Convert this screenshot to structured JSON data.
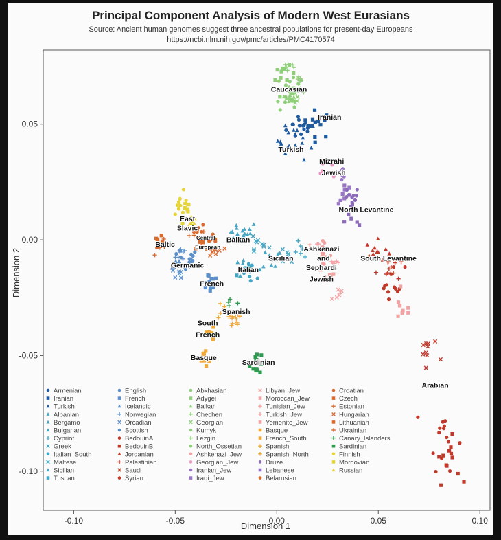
{
  "chart_data": {
    "type": "scatter",
    "title": "Principal Component Analysis of Modern West Eurasians",
    "subtitle": "Source: Ancient human genomes suggest three ancestral populations for present-day Europeans",
    "url": "https://ncbi.nlm.nih.gov/pmc/articles/PMC4170574",
    "xlabel": "Dimension 1",
    "ylabel": "Dimension 2",
    "xlim": [
      -0.115,
      0.105
    ],
    "ylim": [
      -0.117,
      0.082
    ],
    "xticks": [
      "-0.10",
      "-0.05",
      "0.00",
      "0.05",
      "0.10"
    ],
    "xtick_values": [
      -0.1,
      -0.05,
      0.0,
      0.05,
      0.1
    ],
    "yticks": [
      "0.05",
      "0.00",
      "-0.05",
      "-0.10"
    ],
    "ytick_values": [
      0.05,
      0.0,
      -0.05,
      -0.1
    ],
    "grid": false,
    "legend_placement": "bottom-inside",
    "cluster_labels": [
      {
        "text": "Caucasian",
        "x": 0.006,
        "y": 0.064
      },
      {
        "text": "Iranian",
        "x": 0.026,
        "y": 0.052
      },
      {
        "text": "Turkish",
        "x": 0.007,
        "y": 0.038
      },
      {
        "text": "Mizrahi",
        "x": 0.027,
        "y": 0.033
      },
      {
        "text": "Jewish",
        "x": 0.028,
        "y": 0.028
      },
      {
        "text": "North Levantine",
        "x": 0.044,
        "y": 0.012
      },
      {
        "text": "East",
        "x": -0.044,
        "y": 0.008
      },
      {
        "text": "Slavic",
        "x": -0.044,
        "y": 0.004
      },
      {
        "text": "Central",
        "x": -0.035,
        "y": 0.0
      },
      {
        "text": "European",
        "x": -0.034,
        "y": -0.004
      },
      {
        "text": "Baltic",
        "x": -0.055,
        "y": -0.003
      },
      {
        "text": "Balkan",
        "x": -0.019,
        "y": -0.001
      },
      {
        "text": "Germanic",
        "x": -0.044,
        "y": -0.012
      },
      {
        "text": "Italian",
        "x": -0.014,
        "y": -0.014
      },
      {
        "text": "Sicilian",
        "x": 0.002,
        "y": -0.009
      },
      {
        "text": "Ashkenazi",
        "x": 0.022,
        "y": -0.005
      },
      {
        "text": "and",
        "x": 0.023,
        "y": -0.009
      },
      {
        "text": "Sephardi",
        "x": 0.022,
        "y": -0.013
      },
      {
        "text": "Jewish",
        "x": 0.022,
        "y": -0.018
      },
      {
        "text": "South Levantine",
        "x": 0.055,
        "y": -0.009
      },
      {
        "text": "French",
        "x": -0.032,
        "y": -0.02
      },
      {
        "text": "Spanish",
        "x": -0.02,
        "y": -0.032
      },
      {
        "text": "South",
        "x": -0.034,
        "y": -0.037
      },
      {
        "text": "French",
        "x": -0.034,
        "y": -0.042
      },
      {
        "text": "Basque",
        "x": -0.036,
        "y": -0.052
      },
      {
        "text": "Sardinian",
        "x": -0.009,
        "y": -0.054
      },
      {
        "text": "Arabian",
        "x": 0.078,
        "y": -0.064
      }
    ],
    "series": [
      {
        "name": "Armenian",
        "color": "#1f5a9e",
        "marker": "circle",
        "cx": 0.012,
        "cy": 0.049,
        "sx": 0.006,
        "sy": 0.005,
        "n": 14
      },
      {
        "name": "Iranian",
        "color": "#1f5a9e",
        "marker": "square",
        "cx": 0.02,
        "cy": 0.05,
        "sx": 0.006,
        "sy": 0.005,
        "n": 14
      },
      {
        "name": "Turkish",
        "color": "#1f5a9e",
        "marker": "triangle",
        "cx": 0.01,
        "cy": 0.043,
        "sx": 0.008,
        "sy": 0.007,
        "n": 22
      },
      {
        "name": "Albanian",
        "color": "#46a6c4",
        "marker": "triangle",
        "cx": -0.015,
        "cy": 0.004,
        "sx": 0.004,
        "sy": 0.003,
        "n": 8
      },
      {
        "name": "Bergamo",
        "color": "#46a6c4",
        "marker": "triangle",
        "cx": -0.018,
        "cy": -0.012,
        "sx": 0.003,
        "sy": 0.004,
        "n": 6
      },
      {
        "name": "Bulgarian",
        "color": "#46a6c4",
        "marker": "triangle",
        "cx": -0.02,
        "cy": 0.002,
        "sx": 0.004,
        "sy": 0.003,
        "n": 8
      },
      {
        "name": "Cypriot",
        "color": "#46a6c4",
        "marker": "plus",
        "cx": 0.012,
        "cy": -0.005,
        "sx": 0.004,
        "sy": 0.003,
        "n": 6
      },
      {
        "name": "Greek",
        "color": "#46a6c4",
        "marker": "cross",
        "cx": -0.01,
        "cy": -0.002,
        "sx": 0.005,
        "sy": 0.004,
        "n": 10
      },
      {
        "name": "Italian_South",
        "color": "#46a6c4",
        "marker": "circle",
        "cx": -0.012,
        "cy": -0.015,
        "sx": 0.004,
        "sy": 0.004,
        "n": 10
      },
      {
        "name": "Maltese",
        "color": "#46a6c4",
        "marker": "cross",
        "cx": 0.005,
        "cy": -0.008,
        "sx": 0.003,
        "sy": 0.003,
        "n": 6
      },
      {
        "name": "Sicilian",
        "color": "#46a6c4",
        "marker": "triangle",
        "cx": -0.002,
        "cy": -0.008,
        "sx": 0.004,
        "sy": 0.004,
        "n": 10
      },
      {
        "name": "Tuscan",
        "color": "#46a6c4",
        "marker": "square",
        "cx": -0.016,
        "cy": -0.012,
        "sx": 0.004,
        "sy": 0.004,
        "n": 8
      },
      {
        "name": "English",
        "color": "#5b8fc9",
        "marker": "circle",
        "cx": -0.044,
        "cy": -0.008,
        "sx": 0.004,
        "sy": 0.003,
        "n": 10
      },
      {
        "name": "French",
        "color": "#5b8fc9",
        "marker": "square",
        "cx": -0.033,
        "cy": -0.018,
        "sx": 0.004,
        "sy": 0.004,
        "n": 12
      },
      {
        "name": "Icelandic",
        "color": "#5b8fc9",
        "marker": "triangle",
        "cx": -0.05,
        "cy": -0.01,
        "sx": 0.003,
        "sy": 0.003,
        "n": 8
      },
      {
        "name": "Norwegian",
        "color": "#5b8fc9",
        "marker": "plus",
        "cx": -0.046,
        "cy": -0.006,
        "sx": 0.003,
        "sy": 0.003,
        "n": 8
      },
      {
        "name": "Orcadian",
        "color": "#5b8fc9",
        "marker": "cross",
        "cx": -0.048,
        "cy": -0.014,
        "sx": 0.003,
        "sy": 0.003,
        "n": 6
      },
      {
        "name": "Scottish",
        "color": "#5b8fc9",
        "marker": "circle",
        "cx": -0.045,
        "cy": -0.011,
        "sx": 0.003,
        "sy": 0.003,
        "n": 6
      },
      {
        "name": "BedouinA",
        "color": "#c0392b",
        "marker": "circle",
        "cx": 0.082,
        "cy": -0.085,
        "sx": 0.006,
        "sy": 0.012,
        "n": 14
      },
      {
        "name": "BedouinB",
        "color": "#c0392b",
        "marker": "square",
        "cx": 0.084,
        "cy": -0.095,
        "sx": 0.005,
        "sy": 0.008,
        "n": 12
      },
      {
        "name": "Jordanian",
        "color": "#c0392b",
        "marker": "triangle",
        "cx": 0.05,
        "cy": -0.005,
        "sx": 0.005,
        "sy": 0.004,
        "n": 12
      },
      {
        "name": "Palestinian",
        "color": "#c0392b",
        "marker": "plus",
        "cx": 0.055,
        "cy": -0.012,
        "sx": 0.005,
        "sy": 0.005,
        "n": 12
      },
      {
        "name": "Saudi",
        "color": "#c0392b",
        "marker": "cross",
        "cx": 0.074,
        "cy": -0.05,
        "sx": 0.004,
        "sy": 0.01,
        "n": 10
      },
      {
        "name": "Syrian",
        "color": "#c0392b",
        "marker": "circle",
        "cx": 0.057,
        "cy": -0.018,
        "sx": 0.005,
        "sy": 0.006,
        "n": 12
      },
      {
        "name": "Abkhasian",
        "color": "#8fcf7a",
        "marker": "circle",
        "cx": 0.008,
        "cy": 0.068,
        "sx": 0.004,
        "sy": 0.004,
        "n": 10
      },
      {
        "name": "Adygei",
        "color": "#8fcf7a",
        "marker": "square",
        "cx": 0.004,
        "cy": 0.07,
        "sx": 0.004,
        "sy": 0.004,
        "n": 10
      },
      {
        "name": "Balkar",
        "color": "#8fcf7a",
        "marker": "triangle",
        "cx": 0.006,
        "cy": 0.062,
        "sx": 0.004,
        "sy": 0.003,
        "n": 8
      },
      {
        "name": "Chechen",
        "color": "#8fcf7a",
        "marker": "plus",
        "cx": 0.006,
        "cy": 0.075,
        "sx": 0.003,
        "sy": 0.003,
        "n": 6
      },
      {
        "name": "Georgian",
        "color": "#8fcf7a",
        "marker": "cross",
        "cx": 0.01,
        "cy": 0.064,
        "sx": 0.004,
        "sy": 0.003,
        "n": 8
      },
      {
        "name": "Kumyk",
        "color": "#8fcf7a",
        "marker": "circle",
        "cx": 0.004,
        "cy": 0.06,
        "sx": 0.004,
        "sy": 0.003,
        "n": 6
      },
      {
        "name": "Lezgin",
        "color": "#8fcf7a",
        "marker": "plus",
        "cx": 0.012,
        "cy": 0.067,
        "sx": 0.003,
        "sy": 0.003,
        "n": 6
      },
      {
        "name": "North_Ossetian",
        "color": "#8fcf7a",
        "marker": "circle",
        "cx": 0.007,
        "cy": 0.06,
        "sx": 0.003,
        "sy": 0.003,
        "n": 6
      },
      {
        "name": "Ashkenazi_Jew",
        "color": "#f2a4a4",
        "marker": "circle",
        "cx": 0.022,
        "cy": -0.006,
        "sx": 0.004,
        "sy": 0.004,
        "n": 10
      },
      {
        "name": "Georgian_Jew",
        "color": "#e899c2",
        "marker": "circle",
        "cx": 0.024,
        "cy": 0.032,
        "sx": 0.003,
        "sy": 0.003,
        "n": 6
      },
      {
        "name": "Iranian_Jew",
        "color": "#9b77c7",
        "marker": "circle",
        "cx": 0.032,
        "cy": 0.026,
        "sx": 0.003,
        "sy": 0.004,
        "n": 8
      },
      {
        "name": "Iraqi_Jew",
        "color": "#9b77c7",
        "marker": "square",
        "cx": 0.034,
        "cy": 0.02,
        "sx": 0.003,
        "sy": 0.004,
        "n": 8
      },
      {
        "name": "Libyan_Jew",
        "color": "#f2a4a4",
        "marker": "cross",
        "cx": 0.03,
        "cy": -0.024,
        "sx": 0.003,
        "sy": 0.004,
        "n": 6
      },
      {
        "name": "Moroccan_Jew",
        "color": "#f2a4a4",
        "marker": "square",
        "cx": 0.025,
        "cy": -0.015,
        "sx": 0.004,
        "sy": 0.004,
        "n": 6
      },
      {
        "name": "Tunisian_Jew",
        "color": "#f2a4a4",
        "marker": "plus",
        "cx": 0.028,
        "cy": -0.01,
        "sx": 0.003,
        "sy": 0.003,
        "n": 6
      },
      {
        "name": "Turkish_Jew",
        "color": "#f2a4a4",
        "marker": "plus",
        "cx": 0.02,
        "cy": -0.002,
        "sx": 0.003,
        "sy": 0.003,
        "n": 6
      },
      {
        "name": "Yemenite_Jew",
        "color": "#f2a4a4",
        "marker": "square",
        "cx": 0.062,
        "cy": -0.03,
        "sx": 0.004,
        "sy": 0.005,
        "n": 8
      },
      {
        "name": "Basque",
        "color": "#f0a93b",
        "marker": "square",
        "cx": -0.035,
        "cy": -0.051,
        "sx": 0.003,
        "sy": 0.004,
        "n": 10
      },
      {
        "name": "French_South",
        "color": "#f0a93b",
        "marker": "square",
        "cx": -0.033,
        "cy": -0.04,
        "sx": 0.003,
        "sy": 0.003,
        "n": 6
      },
      {
        "name": "Spanish",
        "color": "#f0a93b",
        "marker": "plus",
        "cx": -0.022,
        "cy": -0.035,
        "sx": 0.004,
        "sy": 0.004,
        "n": 14
      },
      {
        "name": "Spanish_North",
        "color": "#f0a93b",
        "marker": "plus",
        "cx": -0.027,
        "cy": -0.031,
        "sx": 0.003,
        "sy": 0.003,
        "n": 6
      },
      {
        "name": "Druze",
        "color": "#8b6bb8",
        "marker": "circle",
        "cx": 0.037,
        "cy": 0.018,
        "sx": 0.003,
        "sy": 0.004,
        "n": 10
      },
      {
        "name": "Lebanese",
        "color": "#8b6bb8",
        "marker": "square",
        "cx": 0.038,
        "cy": 0.01,
        "sx": 0.003,
        "sy": 0.004,
        "n": 8
      },
      {
        "name": "Belarusian",
        "color": "#d96b2f",
        "marker": "circle",
        "cx": -0.039,
        "cy": 0.004,
        "sx": 0.003,
        "sy": 0.003,
        "n": 8
      },
      {
        "name": "Croatian",
        "color": "#d96b2f",
        "marker": "circle",
        "cx": -0.032,
        "cy": -0.002,
        "sx": 0.003,
        "sy": 0.003,
        "n": 8
      },
      {
        "name": "Czech",
        "color": "#d96b2f",
        "marker": "square",
        "cx": -0.036,
        "cy": -0.002,
        "sx": 0.003,
        "sy": 0.003,
        "n": 6
      },
      {
        "name": "Estonian",
        "color": "#d96b2f",
        "marker": "plus",
        "cx": -0.056,
        "cy": -0.002,
        "sx": 0.003,
        "sy": 0.003,
        "n": 6
      },
      {
        "name": "Hungarian",
        "color": "#d96b2f",
        "marker": "cross",
        "cx": -0.03,
        "cy": -0.005,
        "sx": 0.003,
        "sy": 0.003,
        "n": 8
      },
      {
        "name": "Lithuanian",
        "color": "#d96b2f",
        "marker": "square",
        "cx": -0.057,
        "cy": 0.0,
        "sx": 0.003,
        "sy": 0.003,
        "n": 6
      },
      {
        "name": "Ukrainian",
        "color": "#d96b2f",
        "marker": "plus",
        "cx": -0.038,
        "cy": 0.0,
        "sx": 0.003,
        "sy": 0.003,
        "n": 6
      },
      {
        "name": "Canary_Islanders",
        "color": "#2e9b4f",
        "marker": "plus",
        "cx": -0.022,
        "cy": -0.026,
        "sx": 0.003,
        "sy": 0.003,
        "n": 4
      },
      {
        "name": "Sardinian",
        "color": "#2e9b4f",
        "marker": "square",
        "cx": -0.01,
        "cy": -0.053,
        "sx": 0.003,
        "sy": 0.004,
        "n": 16
      },
      {
        "name": "Finnish",
        "color": "#e6d53a",
        "marker": "circle",
        "cx": -0.047,
        "cy": 0.016,
        "sx": 0.003,
        "sy": 0.004,
        "n": 10
      },
      {
        "name": "Mordovian",
        "color": "#e6d53a",
        "marker": "square",
        "cx": -0.044,
        "cy": 0.012,
        "sx": 0.003,
        "sy": 0.004,
        "n": 8
      },
      {
        "name": "Russian",
        "color": "#e6d53a",
        "marker": "triangle",
        "cx": -0.043,
        "cy": 0.008,
        "sx": 0.003,
        "sy": 0.003,
        "n": 8
      }
    ]
  }
}
